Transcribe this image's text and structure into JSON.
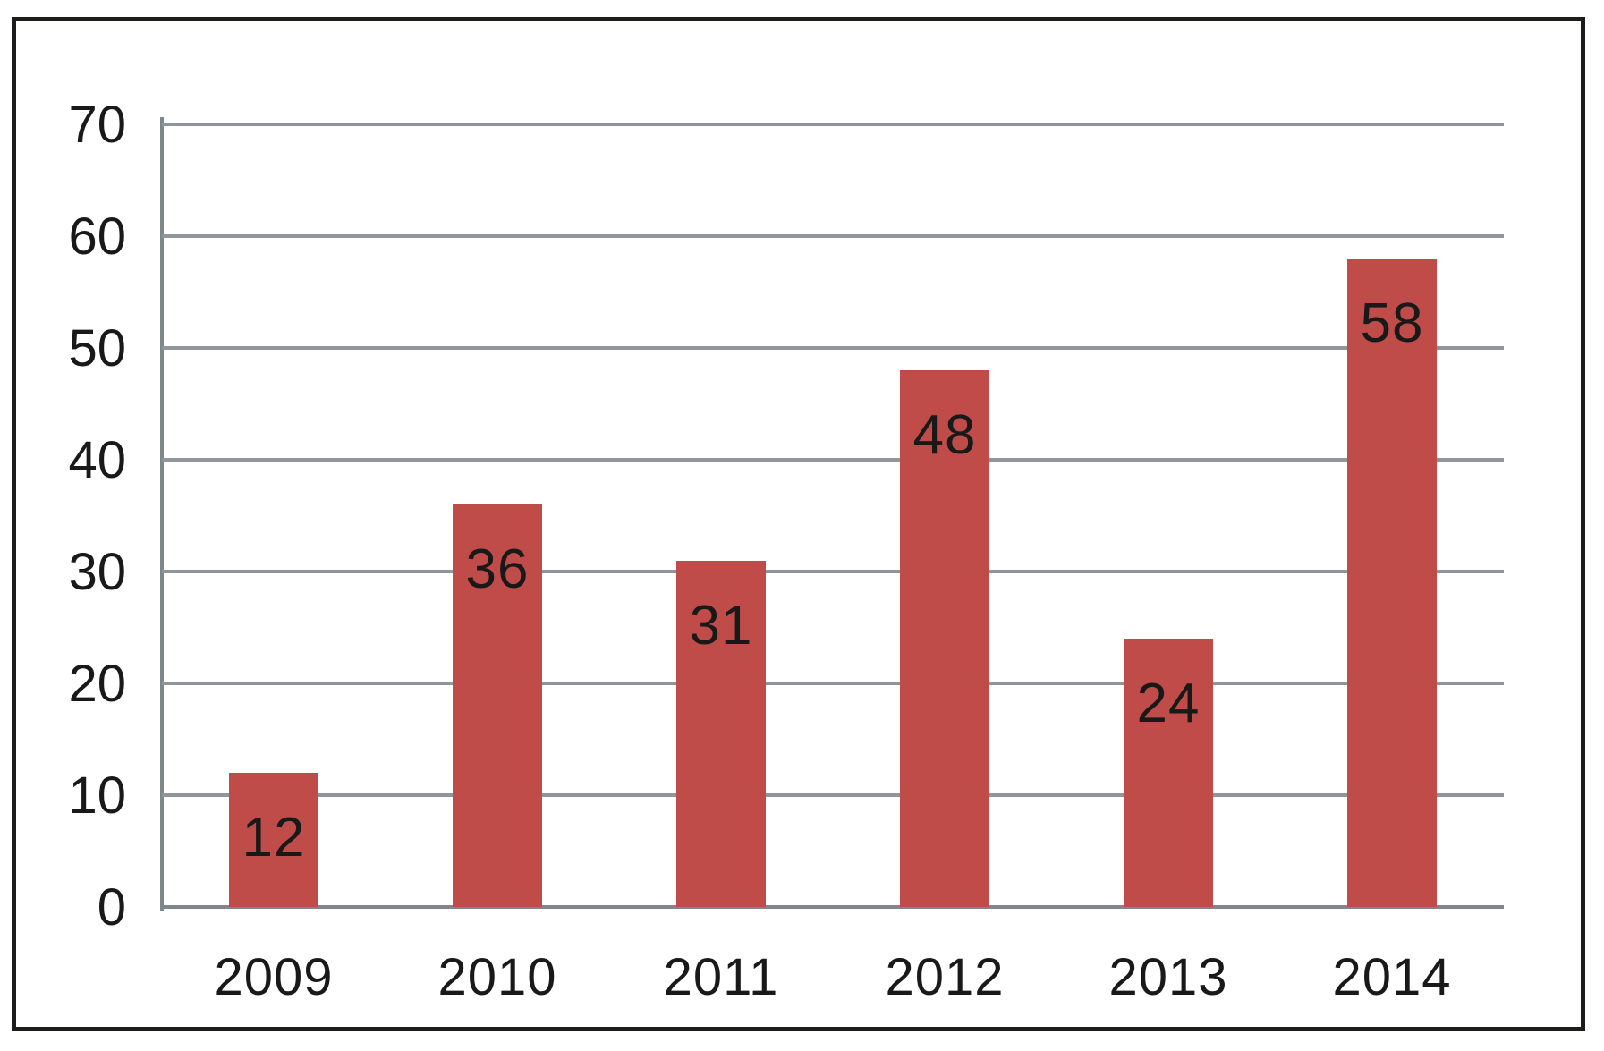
{
  "chart_data": {
    "type": "bar",
    "title": "",
    "xlabel": "",
    "ylabel": "",
    "categories": [
      "2009",
      "2010",
      "2011",
      "2012",
      "2013",
      "2014"
    ],
    "values": [
      12,
      36,
      31,
      48,
      24,
      58
    ],
    "data_labels": [
      "12",
      "36",
      "31",
      "48",
      "24",
      "58"
    ],
    "ylim": [
      0,
      70
    ],
    "yticks": [
      0,
      10,
      20,
      30,
      40,
      50,
      60,
      70
    ],
    "ytick_labels": [
      "0",
      "10",
      "20",
      "30",
      "40",
      "50",
      "60",
      "70"
    ],
    "grid": true,
    "legend": false,
    "data_label_position": "inside-top",
    "colors": {
      "bar": "#c04c4a",
      "gridline": "#8d969a",
      "axis": "#7e888c",
      "frame": "#1e1d1b",
      "text": "#191919",
      "background": "#ffffff"
    }
  }
}
